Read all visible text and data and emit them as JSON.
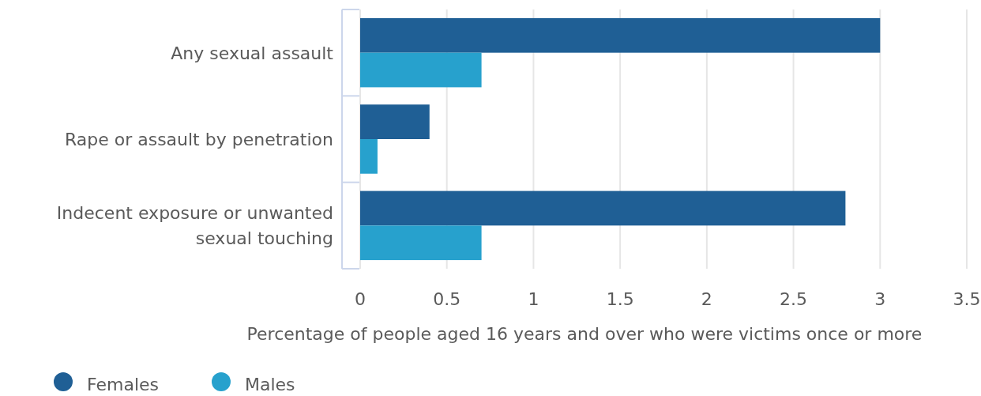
{
  "chart_data": {
    "type": "bar",
    "orientation": "horizontal",
    "xlabel": "Percentage of people aged 16 years and over who were victims once or more",
    "categories": [
      "Any sexual assault",
      "Rape or assault by penetration",
      "Indecent exposure or unwanted sexual touching"
    ],
    "series": [
      {
        "name": "Females",
        "color": "#1f5f95",
        "values": [
          3.0,
          0.4,
          2.8
        ]
      },
      {
        "name": "Males",
        "color": "#27a1cd",
        "values": [
          0.7,
          0.1,
          0.7
        ]
      }
    ],
    "xlim": [
      0,
      3.5
    ],
    "xticks": [
      0,
      0.5,
      1,
      1.5,
      2,
      2.5,
      3,
      3.5
    ],
    "grid": "x",
    "legend": "bottom"
  }
}
